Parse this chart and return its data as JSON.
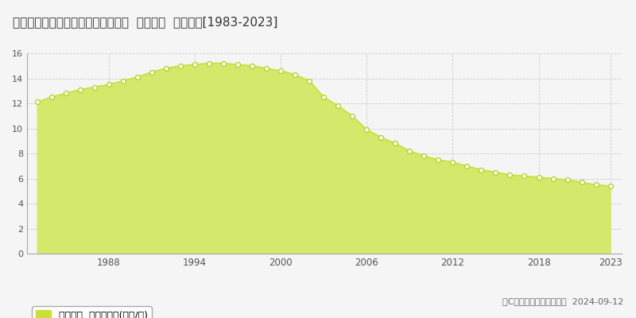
{
  "title": "富山県黒部市生地神区２９３番１外  地価公示  地価推移[1983-2023]",
  "years": [
    1983,
    1984,
    1985,
    1986,
    1987,
    1988,
    1989,
    1990,
    1991,
    1992,
    1993,
    1994,
    1995,
    1996,
    1997,
    1998,
    1999,
    2000,
    2001,
    2002,
    2003,
    2004,
    2005,
    2006,
    2007,
    2008,
    2009,
    2010,
    2011,
    2012,
    2013,
    2014,
    2015,
    2016,
    2017,
    2018,
    2019,
    2020,
    2021,
    2022,
    2023
  ],
  "values": [
    12.1,
    12.5,
    12.8,
    13.1,
    13.3,
    13.5,
    13.8,
    14.1,
    14.5,
    14.8,
    15.0,
    15.1,
    15.2,
    15.2,
    15.1,
    15.0,
    14.8,
    14.6,
    14.3,
    13.8,
    12.5,
    11.8,
    11.0,
    9.9,
    9.3,
    8.8,
    8.2,
    7.8,
    7.5,
    7.3,
    7.0,
    6.7,
    6.5,
    6.3,
    6.2,
    6.1,
    6.0,
    5.9,
    5.7,
    5.5,
    5.4
  ],
  "fill_color": "#d4e96b",
  "line_color": "#c8e038",
  "marker_facecolor": "#ffffff",
  "marker_edgecolor": "#b8d030",
  "background_color": "#f5f5f5",
  "plot_bg_color": "#f5f5f5",
  "grid_color": "#cccccc",
  "title_fontsize": 11,
  "ylim": [
    0,
    16
  ],
  "yticks": [
    0,
    2,
    4,
    6,
    8,
    10,
    12,
    14,
    16
  ],
  "xtick_positions": [
    1988,
    1994,
    2000,
    2006,
    2012,
    2018,
    2023
  ],
  "xtick_labels": [
    "1988",
    "1994",
    "2000",
    "2006",
    "2012",
    "2018",
    "2023"
  ],
  "legend_label": "地価公示  平均坪単価(万円/坪)",
  "legend_color": "#c8e038",
  "copyright_text": "（C）土地価格ドットコム  2024-09-12"
}
